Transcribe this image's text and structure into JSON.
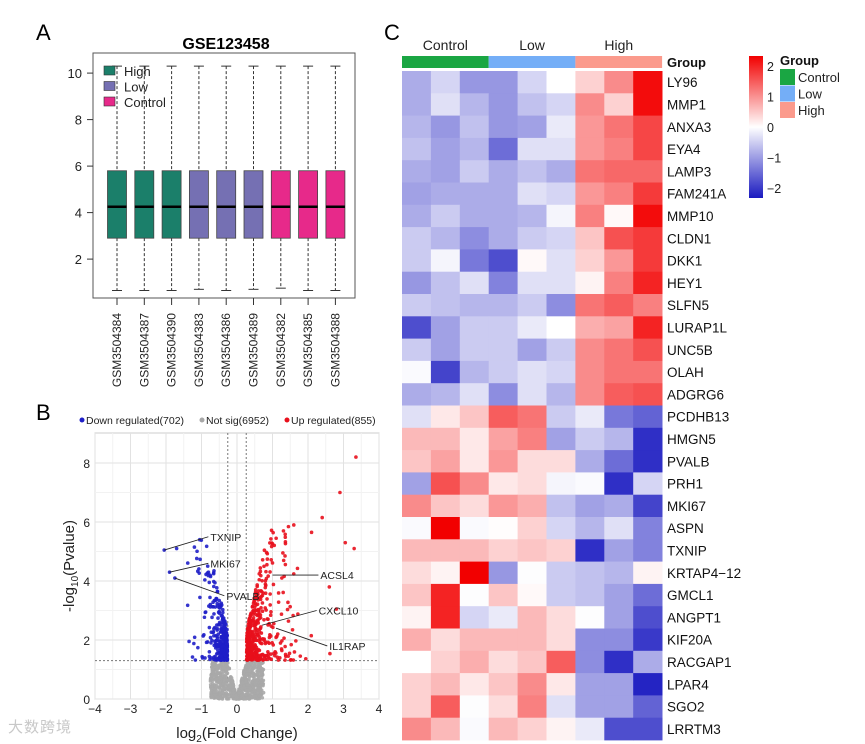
{
  "panel_labels": {
    "a": "A",
    "b": "B",
    "c": "C"
  },
  "watermark": "大数跨境",
  "colors": {
    "high_box": "#1b7f6a",
    "low_box": "#7570b3",
    "control_box": "#e7298a",
    "down": "#1f1fc8",
    "notsig": "#a8a8a8",
    "up": "#e8101c",
    "group_control": "#1aa643",
    "group_low": "#74aef7",
    "group_high": "#fb9a8c",
    "heat_low": "#1a1ac0",
    "heat_mid": "#ffffff",
    "heat_high": "#f20000"
  },
  "chart_data": [
    {
      "type": "boxplot",
      "title": "GSE123458",
      "ylim": [
        0,
        10.5
      ],
      "yticks": [
        2,
        4,
        6,
        8,
        10
      ],
      "legend": {
        "placement": "top-left",
        "entries": [
          "High",
          "Low",
          "Control"
        ]
      },
      "samples": [
        {
          "name": "GSM3504384",
          "group": "High",
          "min": 0.65,
          "q1": 2.9,
          "median": 4.25,
          "q3": 5.8,
          "max": 10.3
        },
        {
          "name": "GSM3504387",
          "group": "High",
          "min": 0.65,
          "q1": 2.9,
          "median": 4.25,
          "q3": 5.8,
          "max": 10.3
        },
        {
          "name": "GSM3504390",
          "group": "High",
          "min": 0.65,
          "q1": 2.9,
          "median": 4.25,
          "q3": 5.8,
          "max": 10.3
        },
        {
          "name": "GSM3504383",
          "group": "Low",
          "min": 0.7,
          "q1": 2.9,
          "median": 4.25,
          "q3": 5.8,
          "max": 10.3
        },
        {
          "name": "GSM3504386",
          "group": "Low",
          "min": 0.65,
          "q1": 2.9,
          "median": 4.25,
          "q3": 5.8,
          "max": 10.3
        },
        {
          "name": "GSM3504389",
          "group": "Low",
          "min": 0.7,
          "q1": 2.9,
          "median": 4.25,
          "q3": 5.8,
          "max": 10.3
        },
        {
          "name": "GSM3504382",
          "group": "Control",
          "min": 0.75,
          "q1": 2.9,
          "median": 4.25,
          "q3": 5.8,
          "max": 10.3
        },
        {
          "name": "GSM3504385",
          "group": "Control",
          "min": 0.65,
          "q1": 2.9,
          "median": 4.25,
          "q3": 5.8,
          "max": 10.3
        },
        {
          "name": "GSM3504388",
          "group": "Control",
          "min": 0.65,
          "q1": 2.9,
          "median": 4.25,
          "q3": 5.8,
          "max": 10.3
        }
      ]
    },
    {
      "type": "scatter",
      "subtype": "volcano",
      "xlabel_main": "log",
      "xlabel_sub": "2",
      "xlabel_rest": "(Fold Change)",
      "ylabel_main": "-log",
      "ylabel_sub": "10",
      "ylabel_rest": "(Pvalue)",
      "xlim": [
        -4,
        4
      ],
      "ylim": [
        0,
        9
      ],
      "xticks": [
        -4,
        -3,
        -2,
        -1,
        0,
        1,
        2,
        3,
        4
      ],
      "yticks": [
        0,
        2,
        4,
        6,
        8
      ],
      "grid": true,
      "thresholds": {
        "log2fc": 0.26,
        "neglog10p": 1.3
      },
      "legend": {
        "placement": "top",
        "entries": [
          {
            "label": "Down regulated(702)",
            "key": "down",
            "count": 702
          },
          {
            "label": "Not sig(6952)",
            "key": "notsig",
            "count": 6952
          },
          {
            "label": "Up regulated(855)",
            "key": "up",
            "count": 855
          }
        ]
      },
      "outliers": [
        {
          "x": 3.35,
          "y": 8.2
        },
        {
          "x": 2.9,
          "y": 7.0
        },
        {
          "x": 2.4,
          "y": 6.15
        },
        {
          "x": 3.05,
          "y": 5.3
        },
        {
          "x": 3.3,
          "y": 5.1
        },
        {
          "x": 2.1,
          "y": 5.65
        },
        {
          "x": 1.6,
          "y": 5.9
        },
        {
          "x": 2.8,
          "y": 3.05
        },
        {
          "x": 2.6,
          "y": 3.8
        },
        {
          "x": -2.05,
          "y": 5.05
        },
        {
          "x": -1.7,
          "y": 5.1
        },
        {
          "x": -1.05,
          "y": 5.4
        },
        {
          "x": -1.2,
          "y": 5.15
        },
        {
          "x": -1.9,
          "y": 4.3
        },
        {
          "x": -1.75,
          "y": 4.1
        },
        {
          "x": -1.35,
          "y": 1.95
        }
      ],
      "annotations": [
        {
          "label": "TXNIP",
          "px": -2.05,
          "py": 5.05,
          "lx": -0.75,
          "ly": 5.5
        },
        {
          "label": "MKI67",
          "px": -1.9,
          "py": 4.3,
          "lx": -0.75,
          "ly": 4.6
        },
        {
          "label": "PVALB",
          "px": -1.75,
          "py": 4.1,
          "lx": -0.3,
          "ly": 3.5
        },
        {
          "label": "ACSL4",
          "px": 1.0,
          "py": 4.2,
          "lx": 2.35,
          "ly": 4.2
        },
        {
          "label": "CXCL10",
          "px": 0.7,
          "py": 2.5,
          "lx": 2.3,
          "ly": 3.0
        },
        {
          "label": "IL1RAP",
          "px": 1.1,
          "py": 2.4,
          "lx": 2.6,
          "ly": 1.8
        }
      ]
    },
    {
      "type": "heatmap",
      "column_groups": [
        {
          "label": "Control",
          "key": "group_control",
          "n": 3
        },
        {
          "label": "Low",
          "key": "group_low",
          "n": 3
        },
        {
          "label": "High",
          "key": "group_high",
          "n": 3
        }
      ],
      "group_row_label": "Group",
      "colorbar": {
        "range": [
          -2.2,
          2.2
        ],
        "ticks": [
          2,
          1,
          0,
          -1,
          -2
        ],
        "tick_labels": [
          "2",
          "1",
          "0",
          "−1",
          "−2"
        ]
      },
      "legend_title": "Group",
      "legend_entries": [
        "Control",
        "Low",
        "High"
      ],
      "rows": [
        "LY96",
        "MMP1",
        "ANXA3",
        "EYA4",
        "LAMP3",
        "FAM241A",
        "MMP10",
        "CLDN1",
        "DKK1",
        "HEY1",
        "SLFN5",
        "LURAP1L",
        "UNC5B",
        "OLAH",
        "ADGRG6",
        "PCDHB13",
        "HMGN5",
        "PVALB",
        "PRH1",
        "MKI67",
        "ASPN",
        "TXNIP",
        "KRTAP4−12",
        "GMCL1",
        "ANGPT1",
        "KIF20A",
        "RACGAP1",
        "LPAR4",
        "SGO2",
        "LRRTM3"
      ],
      "values": [
        [
          -0.8,
          -0.4,
          -1.0,
          -1.0,
          -0.4,
          0,
          0.4,
          1.0,
          2.1
        ],
        [
          -0.8,
          -0.3,
          -0.7,
          -1.0,
          -0.6,
          -0.4,
          1.0,
          0.4,
          2.1
        ],
        [
          -0.7,
          -1.0,
          -0.6,
          -1.0,
          -0.9,
          -0.2,
          0.9,
          1.2,
          1.6
        ],
        [
          -0.6,
          -0.9,
          -0.7,
          -1.4,
          -0.3,
          -0.3,
          0.9,
          1.1,
          1.6
        ],
        [
          -0.8,
          -0.9,
          -0.5,
          -0.8,
          -0.6,
          -0.8,
          1.2,
          1.3,
          1.3
        ],
        [
          -0.9,
          -0.8,
          -0.8,
          -0.8,
          -0.3,
          -0.4,
          0.9,
          1.1,
          1.7
        ],
        [
          -0.8,
          -0.5,
          -0.8,
          -0.8,
          -0.7,
          -0.1,
          1.1,
          0.05,
          2.1
        ],
        [
          -0.5,
          -0.7,
          -1.1,
          -0.8,
          -0.5,
          -0.4,
          0.5,
          1.5,
          1.7
        ],
        [
          -0.5,
          -0.1,
          -1.3,
          -1.7,
          0.05,
          -0.3,
          0.4,
          0.9,
          1.7
        ],
        [
          -1.0,
          -0.6,
          -0.3,
          -1.2,
          -0.3,
          -0.3,
          0.1,
          1.1,
          1.9
        ],
        [
          -0.5,
          -0.6,
          -0.7,
          -0.7,
          -0.5,
          -1.1,
          1.2,
          1.4,
          1.1
        ],
        [
          -1.7,
          -0.9,
          -0.5,
          -0.5,
          -0.2,
          0,
          0.7,
          0.8,
          1.9
        ],
        [
          -0.5,
          -0.9,
          -0.5,
          -0.5,
          -0.9,
          -0.5,
          1.0,
          1.2,
          1.5
        ],
        [
          -0.05,
          -1.8,
          -0.7,
          -0.5,
          -0.3,
          -0.4,
          1.0,
          1.2,
          1.2
        ],
        [
          -0.8,
          -0.7,
          -0.3,
          -1.1,
          -0.3,
          -0.7,
          1.0,
          1.4,
          1.5
        ],
        [
          -0.3,
          0.2,
          0.5,
          1.4,
          1.2,
          -0.5,
          -0.2,
          -1.3,
          -1.5
        ],
        [
          0.6,
          0.6,
          0.2,
          0.8,
          1.1,
          -0.9,
          -0.5,
          -0.7,
          -2.0
        ],
        [
          0.5,
          0.8,
          0.2,
          0.9,
          0.3,
          0.3,
          -0.8,
          -1.4,
          -2.0
        ],
        [
          -0.9,
          1.5,
          1.0,
          0.2,
          0.3,
          -0.1,
          -0.05,
          -2.0,
          -0.4
        ],
        [
          1.0,
          0.5,
          0.3,
          0.9,
          0.7,
          -0.6,
          -0.9,
          -0.8,
          -1.8
        ],
        [
          -0.05,
          2.3,
          -0.05,
          0.02,
          0.4,
          -0.4,
          -0.7,
          -0.3,
          -1.2
        ],
        [
          0.6,
          0.6,
          0.6,
          0.4,
          0.5,
          0.4,
          -2.0,
          -0.9,
          -1.2
        ],
        [
          0.3,
          0.1,
          2.3,
          -1.0,
          -0.02,
          -0.5,
          -0.6,
          -0.7,
          0.1
        ],
        [
          0.5,
          1.9,
          -0.02,
          0.5,
          0.05,
          -0.5,
          -0.6,
          -0.9,
          -1.4
        ],
        [
          0.1,
          1.9,
          -0.4,
          -0.2,
          0.6,
          0.3,
          -0.02,
          -0.9,
          -1.7
        ],
        [
          0.7,
          0.3,
          0.6,
          0.6,
          0.6,
          0.3,
          -1.1,
          -1.1,
          -1.9
        ],
        [
          0,
          0.4,
          0.7,
          0.3,
          0.5,
          1.4,
          -1.1,
          -2.0,
          -0.8
        ],
        [
          0.4,
          0.6,
          0.2,
          0.5,
          1.0,
          0.2,
          -0.9,
          -0.9,
          -2.1
        ],
        [
          0.4,
          1.4,
          -0.02,
          0.3,
          1.1,
          -0.3,
          -0.9,
          -0.9,
          -1.5
        ],
        [
          1.0,
          0.6,
          -0.05,
          0.6,
          0.4,
          0.1,
          -0.2,
          -1.7,
          -1.7
        ]
      ]
    }
  ]
}
